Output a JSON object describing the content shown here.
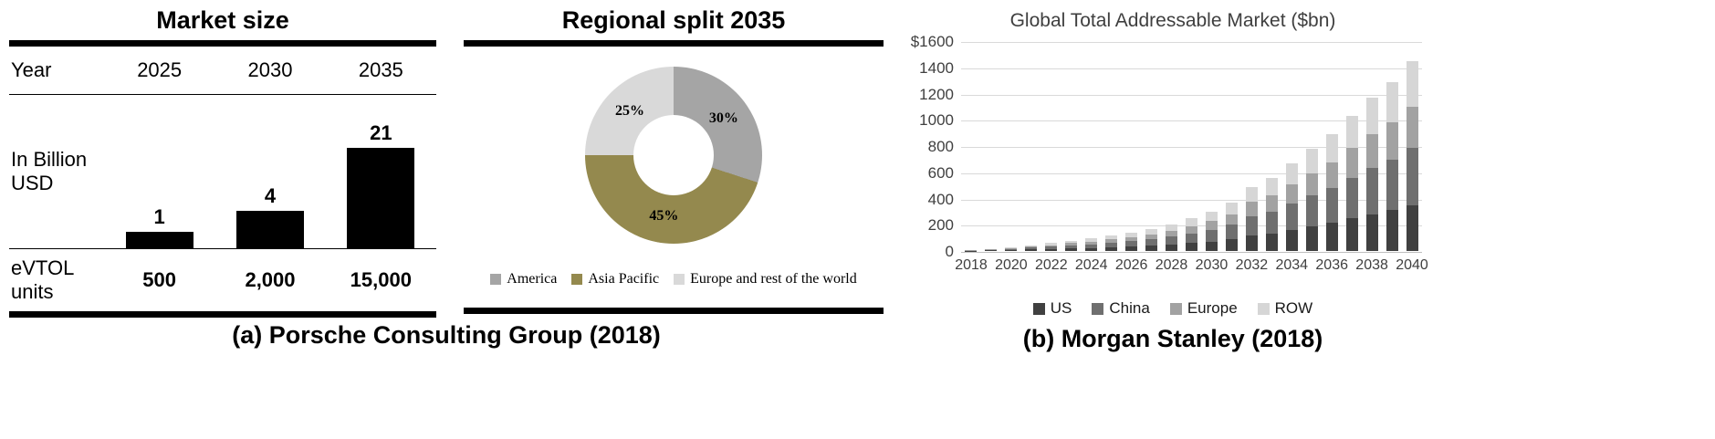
{
  "chart_data": [
    {
      "id": "market-size",
      "type": "bar",
      "title": "Market size",
      "caption": "(a) Porsche Consulting Group (2018)",
      "row_labels": {
        "year": "Year",
        "units": "eVTOL units"
      },
      "categories": [
        "2025",
        "2030",
        "2035"
      ],
      "values": [
        1,
        4,
        21
      ],
      "ylabel": "In Billion USD",
      "units_values": [
        "500",
        "2,000",
        "15,000"
      ],
      "bar_color": "#000000"
    },
    {
      "id": "regional-split-2035",
      "type": "pie",
      "donut": true,
      "title": "Regional split 2035",
      "labels": [
        "America",
        "Asia Pacific",
        "Europe and rest of the world"
      ],
      "values": [
        30,
        45,
        25
      ],
      "value_labels": [
        "30%",
        "45%",
        "25%"
      ],
      "colors": [
        "#a5a5a5",
        "#94894e",
        "#d9d9d9"
      ],
      "legend_position": "bottom"
    },
    {
      "id": "global-tam",
      "type": "bar",
      "stacked": true,
      "title": "Global Total Addressable Market ($bn)",
      "caption": "(b) Morgan Stanley (2018)",
      "x": [
        2018,
        2019,
        2020,
        2021,
        2022,
        2023,
        2024,
        2025,
        2026,
        2027,
        2028,
        2029,
        2030,
        2031,
        2032,
        2033,
        2034,
        2035,
        2036,
        2037,
        2038,
        2039,
        2040
      ],
      "series": [
        {
          "name": "US",
          "color": "#404040",
          "values": [
            1,
            4,
            7,
            11,
            14,
            19,
            23,
            28,
            34,
            40,
            48,
            60,
            72,
            89,
            118,
            134,
            161,
            187,
            214,
            247,
            281,
            310,
            348
          ]
        },
        {
          "name": "China",
          "color": "#6f6f6f",
          "values": [
            2,
            5,
            9,
            14,
            18,
            24,
            29,
            35,
            42,
            50,
            60,
            75,
            90,
            111,
            147,
            168,
            201,
            234,
            267,
            309,
            351,
            387,
            435
          ]
        },
        {
          "name": "Europe",
          "color": "#a2a2a2",
          "values": [
            1,
            3,
            7,
            10,
            13,
            18,
            21,
            25,
            31,
            36,
            44,
            55,
            66,
            81,
            108,
            123,
            147,
            172,
            196,
            227,
            257,
            284,
            319
          ]
        },
        {
          "name": "ROW",
          "color": "#d6d6d6",
          "values": [
            1,
            3,
            7,
            10,
            15,
            19,
            22,
            27,
            33,
            39,
            48,
            60,
            72,
            89,
            117,
            135,
            161,
            187,
            213,
            247,
            281,
            309,
            348
          ]
        }
      ],
      "ylim": [
        0,
        1600
      ],
      "ytick_labels": [
        "$1600",
        "1400",
        "1200",
        "1000",
        "800",
        "600",
        "400",
        "200",
        "0"
      ],
      "xtick_labels": [
        "2018",
        "2020",
        "2022",
        "2024",
        "2026",
        "2028",
        "2030",
        "2032",
        "2034",
        "2036",
        "2038",
        "2040"
      ],
      "grid": true,
      "legend": [
        "US",
        "China",
        "Europe",
        "ROW"
      ],
      "legend_position": "bottom"
    }
  ]
}
